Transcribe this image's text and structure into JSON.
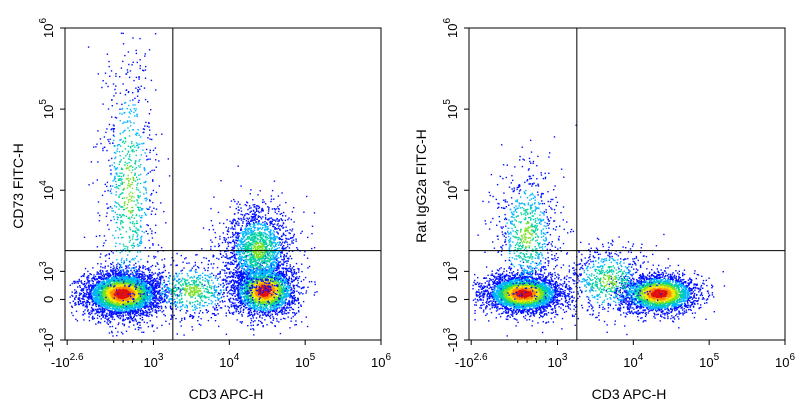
{
  "chart_data": [
    {
      "type": "scatter",
      "subtype": "flow-cytometry-density",
      "title": "",
      "xlabel": "CD3 APC-H",
      "ylabel": "CD73 FITC-H",
      "x_ticks": [
        {
          "base": "-10",
          "exp": "2.6",
          "value": -398
        },
        {
          "base": "10",
          "exp": "3",
          "value": 1000
        },
        {
          "base": "10",
          "exp": "4",
          "value": 10000
        },
        {
          "base": "10",
          "exp": "5",
          "value": 100000
        },
        {
          "base": "10",
          "exp": "6",
          "value": 1000000
        }
      ],
      "y_ticks": [
        {
          "base": "-10",
          "exp": "3",
          "value": -1000
        },
        {
          "base": "0",
          "exp": "",
          "value": 0
        },
        {
          "base": "10",
          "exp": "3",
          "value": 1000
        },
        {
          "base": "10",
          "exp": "4",
          "value": 10000
        },
        {
          "base": "10",
          "exp": "5",
          "value": 100000
        },
        {
          "base": "10",
          "exp": "6",
          "value": 1000000
        }
      ],
      "gate": {
        "x": 1800,
        "y": 1800
      },
      "populations": [
        {
          "name": "CD3- CD73-",
          "center": [
            400,
            500
          ],
          "density": "high"
        },
        {
          "name": "CD3+ CD73-",
          "center": [
            16000,
            700
          ],
          "density": "high"
        },
        {
          "name": "CD3+ CD73+",
          "center": [
            15000,
            2000
          ],
          "density": "medium"
        },
        {
          "name": "CD3- CD73+",
          "center": [
            500,
            20000
          ],
          "density": "low"
        }
      ]
    },
    {
      "type": "scatter",
      "subtype": "flow-cytometry-density",
      "title": "",
      "xlabel": "CD3 APC-H",
      "ylabel": "Rat IgG2a FITC-H",
      "x_ticks": [
        {
          "base": "-10",
          "exp": "2.6",
          "value": -398
        },
        {
          "base": "10",
          "exp": "3",
          "value": 1000
        },
        {
          "base": "10",
          "exp": "4",
          "value": 10000
        },
        {
          "base": "10",
          "exp": "5",
          "value": 100000
        },
        {
          "base": "10",
          "exp": "6",
          "value": 1000000
        }
      ],
      "y_ticks": [
        {
          "base": "-10",
          "exp": "3",
          "value": -1000
        },
        {
          "base": "0",
          "exp": "",
          "value": 0
        },
        {
          "base": "10",
          "exp": "3",
          "value": 1000
        },
        {
          "base": "10",
          "exp": "4",
          "value": 10000
        },
        {
          "base": "10",
          "exp": "5",
          "value": 100000
        },
        {
          "base": "10",
          "exp": "6",
          "value": 1000000
        }
      ],
      "gate": {
        "x": 1800,
        "y": 1800
      },
      "populations": [
        {
          "name": "CD3- isotype",
          "center": [
            350,
            500
          ],
          "density": "high"
        },
        {
          "name": "CD3+ isotype",
          "center": [
            14000,
            550
          ],
          "density": "high"
        },
        {
          "name": "scatter above gate",
          "center": [
            500,
            6000
          ],
          "density": "low"
        }
      ]
    }
  ]
}
